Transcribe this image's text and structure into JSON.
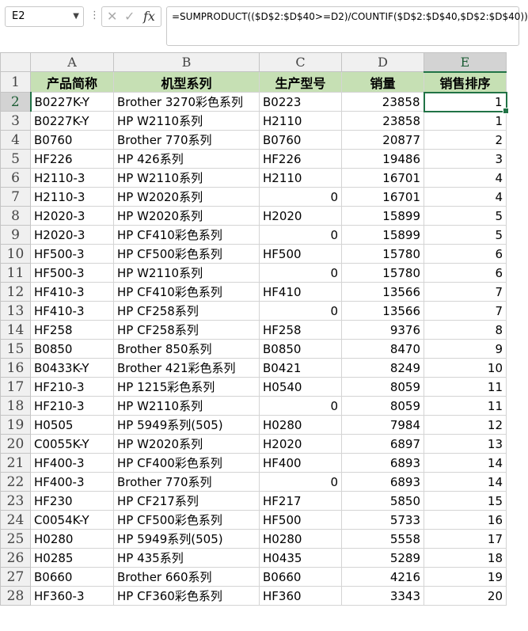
{
  "formula_bar": {
    "name_box": "E2",
    "formula": "=SUMPRODUCT(($D$2:$D$40>=D2)/COUNTIF($D$2:$D$40,$D$2:$D$40))"
  },
  "columns": [
    "A",
    "B",
    "C",
    "D",
    "E"
  ],
  "header": [
    "产品简称",
    "机型系列",
    "生产型号",
    "销量",
    "销售排序"
  ],
  "rows": [
    [
      "B0227K-Y",
      "Brother 3270彩色系列",
      "B0223",
      "23858",
      "1"
    ],
    [
      "B0227K-Y",
      "HP W2110系列",
      "H2110",
      "23858",
      "1"
    ],
    [
      "B0760",
      "Brother 770系列",
      "B0760",
      "20877",
      "2"
    ],
    [
      "HF226",
      "HP 426系列",
      "HF226",
      "19486",
      "3"
    ],
    [
      "H2110-3",
      "HP W2110系列",
      "H2110",
      "16701",
      "4"
    ],
    [
      "H2110-3",
      "HP W2020系列",
      "0",
      "16701",
      "4"
    ],
    [
      "H2020-3",
      "HP W2020系列",
      "H2020",
      "15899",
      "5"
    ],
    [
      "H2020-3",
      "HP CF410彩色系列",
      "0",
      "15899",
      "5"
    ],
    [
      "HF500-3",
      "HP CF500彩色系列",
      "HF500",
      "15780",
      "6"
    ],
    [
      "HF500-3",
      "HP W2110系列",
      "0",
      "15780",
      "6"
    ],
    [
      "HF410-3",
      "HP CF410彩色系列",
      "HF410",
      "13566",
      "7"
    ],
    [
      "HF410-3",
      "HP CF258系列",
      "0",
      "13566",
      "7"
    ],
    [
      "HF258",
      "HP CF258系列",
      "HF258",
      "9376",
      "8"
    ],
    [
      "B0850",
      "Brother 850系列",
      "B0850",
      "8470",
      "9"
    ],
    [
      "B0433K-Y",
      "Brother 421彩色系列",
      "B0421",
      "8249",
      "10"
    ],
    [
      "HF210-3",
      "HP 1215彩色系列",
      "H0540",
      "8059",
      "11"
    ],
    [
      "HF210-3",
      "HP W2110系列",
      "0",
      "8059",
      "11"
    ],
    [
      "H0505",
      "HP 5949系列(505)",
      "H0280",
      "7984",
      "12"
    ],
    [
      "C0055K-Y",
      "HP W2020系列",
      "H2020",
      "6897",
      "13"
    ],
    [
      "HF400-3",
      "HP CF400彩色系列",
      "HF400",
      "6893",
      "14"
    ],
    [
      "HF400-3",
      "Brother 770系列",
      "0",
      "6893",
      "14"
    ],
    [
      "HF230",
      "HP CF217系列",
      "HF217",
      "5850",
      "15"
    ],
    [
      "C0054K-Y",
      "HP CF500彩色系列",
      "HF500",
      "5733",
      "16"
    ],
    [
      "H0280",
      "HP 5949系列(505)",
      "H0280",
      "5558",
      "17"
    ],
    [
      "H0285",
      "HP 435系列",
      "H0435",
      "5289",
      "18"
    ],
    [
      "B0660",
      "Brother 660系列",
      "B0660",
      "4216",
      "19"
    ],
    [
      "HF360-3",
      "HP CF360彩色系列",
      "HF360",
      "3343",
      "20"
    ]
  ]
}
